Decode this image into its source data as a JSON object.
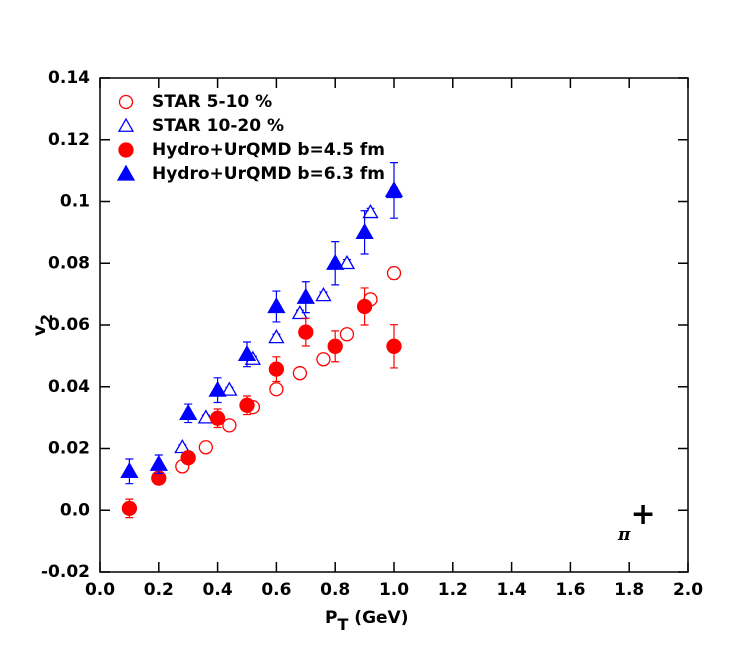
{
  "chart_data": {
    "type": "scatter",
    "xlabel": {
      "text": "P",
      "subscript": "T",
      "suffix": " (GeV)"
    },
    "ylabel": {
      "text": "v",
      "subscript": "2"
    },
    "annotation": {
      "base": "π",
      "superscript": "+"
    },
    "xlim": [
      0,
      2
    ],
    "ylim": [
      -0.02,
      0.14
    ],
    "xticks": [
      {
        "value": 0,
        "label": "0.0"
      },
      0.2,
      0.4,
      0.6,
      0.8,
      {
        "value": 1,
        "label": "1.0"
      },
      1.2,
      1.4,
      1.6,
      1.8,
      {
        "value": 2,
        "label": "2.0"
      }
    ],
    "yticks": [
      -0.02,
      {
        "value": 0,
        "label": "0.0"
      },
      0.02,
      0.04,
      0.06,
      0.08,
      0.1,
      0.12,
      0.14
    ],
    "legend": "upper-left",
    "series": [
      {
        "name": "STAR 5-10 %",
        "color": "#ff0000",
        "marker": "circle",
        "filled": false,
        "x": [
          0.28,
          0.36,
          0.44,
          0.52,
          0.6,
          0.68,
          0.76,
          0.84,
          0.92,
          1.0
        ],
        "values": [
          0.0142,
          0.0204,
          0.0275,
          0.0334,
          0.0392,
          0.0444,
          0.0489,
          0.057,
          0.0683,
          0.0768
        ],
        "errors": [
          0.001,
          0.001,
          0.001,
          0.001,
          0.0012,
          0.0012,
          0.0014,
          0.0015,
          0.0017,
          0.0019
        ]
      },
      {
        "name": "STAR 10-20 %",
        "color": "#0000ff",
        "marker": "triangle",
        "filled": false,
        "x": [
          0.28,
          0.36,
          0.44,
          0.52,
          0.6,
          0.68,
          0.76,
          0.84,
          0.92,
          1.0
        ],
        "values": [
          0.0204,
          0.03,
          0.039,
          0.049,
          0.056,
          0.0638,
          0.0696,
          0.08,
          0.0965,
          0.103
        ],
        "errors": [
          0.0008,
          0.0008,
          0.0008,
          0.0009,
          0.001,
          0.001,
          0.0011,
          0.0012,
          0.0013,
          0.0015
        ]
      },
      {
        "name": "Hydro+UrQMD b=4.5 fm",
        "color": "#ff0000",
        "marker": "circle",
        "filled": true,
        "x": [
          0.1,
          0.2,
          0.3,
          0.4,
          0.5,
          0.6,
          0.7,
          0.8,
          0.9,
          1.0
        ],
        "values": [
          0.0006,
          0.0104,
          0.017,
          0.0298,
          0.034,
          0.0457,
          0.0577,
          0.0531,
          0.066,
          0.0531
        ],
        "errors": [
          0.003,
          0.002,
          0.002,
          0.003,
          0.003,
          0.004,
          0.0045,
          0.005,
          0.006,
          0.007
        ]
      },
      {
        "name": "Hydro+UrQMD b=6.3 fm",
        "color": "#0000ff",
        "marker": "triangle",
        "filled": true,
        "x": [
          0.1,
          0.2,
          0.3,
          0.4,
          0.5,
          0.6,
          0.7,
          0.8,
          0.9,
          1.0
        ],
        "values": [
          0.0126,
          0.0149,
          0.0314,
          0.0389,
          0.0505,
          0.066,
          0.069,
          0.08,
          0.09,
          0.1036
        ],
        "errors": [
          0.004,
          0.003,
          0.003,
          0.004,
          0.004,
          0.005,
          0.005,
          0.007,
          0.007,
          0.009
        ]
      }
    ]
  }
}
